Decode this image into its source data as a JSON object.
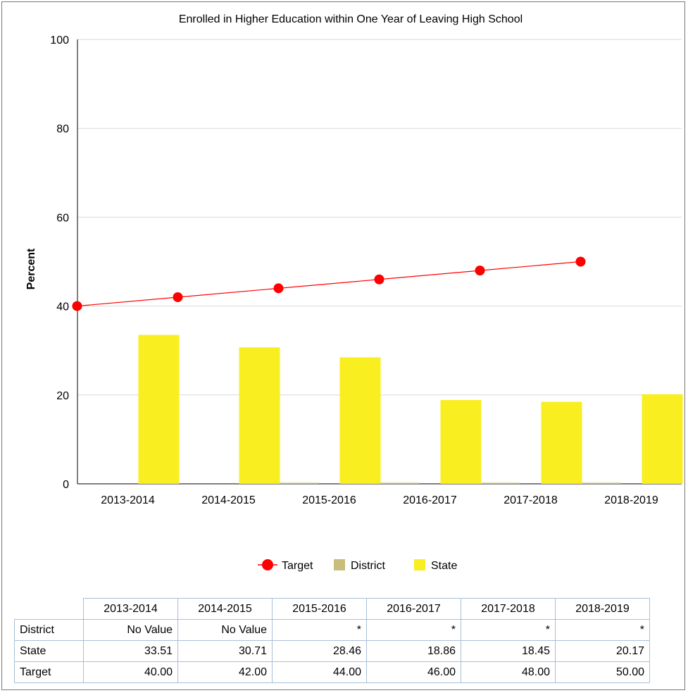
{
  "chart_data": {
    "type": "bar",
    "title": "Enrolled in Higher Education within One Year of Leaving High School",
    "ylabel": "Percent",
    "xlabel": "",
    "ylim": [
      0,
      100
    ],
    "yticks": [
      0,
      20,
      40,
      60,
      80,
      100
    ],
    "grid": true,
    "legend_position": "bottom",
    "categories": [
      "2013-2014",
      "2014-2015",
      "2015-2016",
      "2016-2017",
      "2017-2018",
      "2018-2019"
    ],
    "series": [
      {
        "name": "Target",
        "kind": "line",
        "color": "#ff0000",
        "values": [
          40.0,
          42.0,
          44.0,
          46.0,
          48.0,
          50.0
        ]
      },
      {
        "name": "District",
        "kind": "bar",
        "color": "#c8bd7a",
        "values": [
          null,
          null,
          0,
          0,
          0,
          0
        ]
      },
      {
        "name": "State",
        "kind": "bar",
        "color": "#f9ee1f",
        "values": [
          33.51,
          30.71,
          28.46,
          18.86,
          18.45,
          20.17
        ]
      }
    ]
  },
  "table": {
    "columns": [
      "2013-2014",
      "2014-2015",
      "2015-2016",
      "2016-2017",
      "2017-2018",
      "2018-2019"
    ],
    "rows": [
      {
        "label": "District",
        "cells": [
          "No Value",
          "No Value",
          "*",
          "*",
          "*",
          "*"
        ]
      },
      {
        "label": "State",
        "cells": [
          "33.51",
          "30.71",
          "28.46",
          "18.86",
          "18.45",
          "20.17"
        ]
      },
      {
        "label": "Target",
        "cells": [
          "40.00",
          "42.00",
          "44.00",
          "46.00",
          "48.00",
          "50.00"
        ]
      }
    ]
  }
}
